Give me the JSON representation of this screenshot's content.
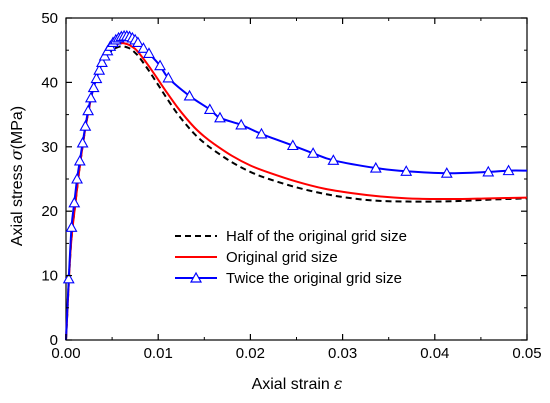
{
  "chart_data": {
    "type": "line",
    "xlabel": "Axial strain",
    "xlabel_symbol": "ε",
    "ylabel": "Axial stress",
    "ylabel_symbol": "σ",
    "ylabel_unit": "(MPa)",
    "xlim": [
      0,
      0.05
    ],
    "ylim": [
      0,
      50
    ],
    "x_ticks": [
      "0.00",
      "0.01",
      "0.02",
      "0.03",
      "0.04",
      "0.05"
    ],
    "y_ticks": [
      "0",
      "10",
      "20",
      "30",
      "40",
      "50"
    ],
    "grid": false,
    "legend_position": "center-right",
    "series": [
      {
        "name": "Half of the original grid size",
        "color": "#000000",
        "style": "dashed",
        "marker": "none",
        "points": [
          [
            0,
            0
          ],
          [
            0.0005,
            14
          ],
          [
            0.001,
            21
          ],
          [
            0.0015,
            27
          ],
          [
            0.002,
            32
          ],
          [
            0.0025,
            36
          ],
          [
            0.003,
            39
          ],
          [
            0.0035,
            41.5
          ],
          [
            0.004,
            43.2
          ],
          [
            0.0045,
            44.3
          ],
          [
            0.005,
            45
          ],
          [
            0.0055,
            45.4
          ],
          [
            0.006,
            45.6
          ],
          [
            0.0065,
            45.5
          ],
          [
            0.007,
            45.2
          ],
          [
            0.0075,
            44.6
          ],
          [
            0.008,
            43.8
          ],
          [
            0.009,
            41.8
          ],
          [
            0.01,
            39.6
          ],
          [
            0.011,
            37.4
          ],
          [
            0.012,
            35.3
          ],
          [
            0.013,
            33.5
          ],
          [
            0.014,
            31.9
          ],
          [
            0.015,
            30.6
          ],
          [
            0.016,
            29.5
          ],
          [
            0.018,
            27.6
          ],
          [
            0.02,
            26.1
          ],
          [
            0.022,
            25
          ],
          [
            0.025,
            23.7
          ],
          [
            0.028,
            22.7
          ],
          [
            0.031,
            22
          ],
          [
            0.034,
            21.6
          ],
          [
            0.037,
            21.5
          ],
          [
            0.04,
            21.5
          ],
          [
            0.043,
            21.6
          ],
          [
            0.046,
            21.8
          ],
          [
            0.05,
            22
          ]
        ]
      },
      {
        "name": "Original grid size",
        "color": "#ff0000",
        "style": "solid",
        "marker": "none",
        "points": [
          [
            0,
            0
          ],
          [
            0.0005,
            14
          ],
          [
            0.001,
            21
          ],
          [
            0.0015,
            27
          ],
          [
            0.002,
            32
          ],
          [
            0.0025,
            36
          ],
          [
            0.003,
            39.3
          ],
          [
            0.0035,
            41.8
          ],
          [
            0.004,
            43.6
          ],
          [
            0.0045,
            44.8
          ],
          [
            0.005,
            45.5
          ],
          [
            0.0055,
            45.9
          ],
          [
            0.006,
            46.1
          ],
          [
            0.0065,
            46
          ],
          [
            0.007,
            45.7
          ],
          [
            0.0075,
            45.2
          ],
          [
            0.008,
            44.4
          ],
          [
            0.009,
            42.5
          ],
          [
            0.01,
            40.4
          ],
          [
            0.011,
            38.3
          ],
          [
            0.012,
            36.3
          ],
          [
            0.013,
            34.5
          ],
          [
            0.014,
            32.9
          ],
          [
            0.015,
            31.6
          ],
          [
            0.016,
            30.5
          ],
          [
            0.018,
            28.6
          ],
          [
            0.02,
            27.1
          ],
          [
            0.022,
            26
          ],
          [
            0.025,
            24.6
          ],
          [
            0.028,
            23.5
          ],
          [
            0.031,
            22.8
          ],
          [
            0.034,
            22.3
          ],
          [
            0.037,
            22
          ],
          [
            0.04,
            21.9
          ],
          [
            0.043,
            21.9
          ],
          [
            0.046,
            22
          ],
          [
            0.05,
            22.1
          ]
        ]
      },
      {
        "name": "Twice the original grid size",
        "color": "#0000ff",
        "style": "solid",
        "marker": "open-triangle",
        "points": [
          [
            0,
            0
          ],
          [
            0.0003,
            9.5
          ],
          [
            0.0006,
            17.5
          ],
          [
            0.0009,
            21.3
          ],
          [
            0.0012,
            25
          ],
          [
            0.0015,
            27.8
          ],
          [
            0.0018,
            30.6
          ],
          [
            0.0021,
            33.2
          ],
          [
            0.0024,
            35.6
          ],
          [
            0.0027,
            37.6
          ],
          [
            0.003,
            39.2
          ],
          [
            0.0033,
            40.6
          ],
          [
            0.0036,
            41.9
          ],
          [
            0.0039,
            43.1
          ],
          [
            0.0042,
            44.1
          ],
          [
            0.0045,
            44.9
          ],
          [
            0.0048,
            45.6
          ],
          [
            0.0051,
            46.2
          ],
          [
            0.0054,
            46.6
          ],
          [
            0.0057,
            46.9
          ],
          [
            0.006,
            47.1
          ],
          [
            0.0063,
            47.2
          ],
          [
            0.0066,
            47.2
          ],
          [
            0.0069,
            47.1
          ],
          [
            0.0072,
            46.9
          ],
          [
            0.0075,
            46.6
          ],
          [
            0.0078,
            46.2
          ],
          [
            0.0084,
            45.3
          ],
          [
            0.009,
            44.5
          ],
          [
            0.0102,
            42.6
          ],
          [
            0.0111,
            40.7
          ],
          [
            0.0134,
            37.9
          ],
          [
            0.0156,
            35.8
          ],
          [
            0.0167,
            34.5
          ],
          [
            0.019,
            33.4
          ],
          [
            0.0212,
            32
          ],
          [
            0.0246,
            30.2
          ],
          [
            0.0268,
            29
          ],
          [
            0.029,
            27.9
          ],
          [
            0.0336,
            26.7
          ],
          [
            0.0369,
            26.2
          ],
          [
            0.0413,
            25.9
          ],
          [
            0.0458,
            26.1
          ],
          [
            0.048,
            26.3
          ],
          [
            0.05,
            26.3
          ]
        ],
        "marker_x": [
          0.0003,
          0.0006,
          0.0009,
          0.0012,
          0.0015,
          0.0018,
          0.0021,
          0.0024,
          0.0027,
          0.003,
          0.0033,
          0.0036,
          0.0039,
          0.0042,
          0.0045,
          0.0048,
          0.0051,
          0.0054,
          0.0057,
          0.006,
          0.0063,
          0.0066,
          0.0069,
          0.0072,
          0.0075,
          0.0078,
          0.0084,
          0.009,
          0.0102,
          0.0111,
          0.0134,
          0.0156,
          0.0167,
          0.019,
          0.0212,
          0.0246,
          0.0268,
          0.029,
          0.0336,
          0.0369,
          0.0413,
          0.0458,
          0.048
        ]
      }
    ]
  }
}
